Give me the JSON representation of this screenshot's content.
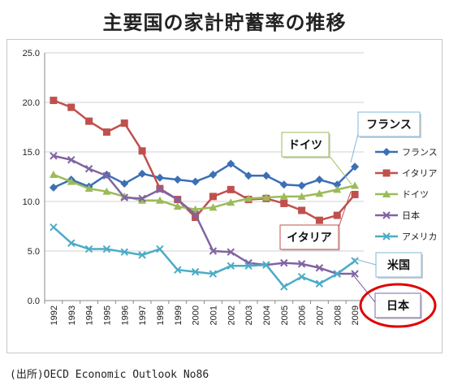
{
  "page": {
    "title": "主要国の家計貯蓄率の推移",
    "source": "(出所)OECD Economic Outlook No86"
  },
  "chart_data": {
    "type": "line",
    "categories": [
      "1992",
      "1993",
      "1994",
      "1995",
      "1996",
      "1997",
      "1998",
      "1999",
      "2000",
      "2001",
      "2002",
      "2003",
      "2004",
      "2005",
      "2006",
      "2007",
      "2008",
      "2009"
    ],
    "ylim": [
      0,
      25
    ],
    "yticks": [
      "0.0",
      "5.0",
      "10.0",
      "15.0",
      "20.0",
      "25.0"
    ],
    "grid": true,
    "legend_position": "right",
    "series": [
      {
        "name": "フランス",
        "color": "#3b6fb6",
        "marker": "diamond",
        "values": [
          11.4,
          12.2,
          11.5,
          12.7,
          11.8,
          12.8,
          12.4,
          12.2,
          12.0,
          12.7,
          13.8,
          12.6,
          12.6,
          11.7,
          11.6,
          12.2,
          11.7,
          13.5
        ]
      },
      {
        "name": "イタリア",
        "color": "#c0504d",
        "marker": "square",
        "values": [
          20.2,
          19.5,
          18.1,
          17.0,
          17.9,
          15.1,
          11.3,
          10.2,
          8.4,
          10.5,
          11.2,
          10.2,
          10.3,
          9.8,
          9.1,
          8.1,
          8.6,
          10.7
        ]
      },
      {
        "name": "ドイツ",
        "color": "#9bbb59",
        "marker": "triangle",
        "values": [
          12.7,
          12.0,
          11.3,
          11.0,
          10.5,
          10.1,
          10.1,
          9.5,
          9.2,
          9.4,
          9.9,
          10.3,
          10.4,
          10.5,
          10.5,
          10.8,
          11.2,
          11.6
        ]
      },
      {
        "name": "日本",
        "color": "#8064a2",
        "marker": "x",
        "values": [
          14.6,
          14.2,
          13.3,
          12.6,
          10.4,
          10.3,
          11.2,
          10.2,
          8.7,
          5.0,
          4.9,
          3.8,
          3.6,
          3.8,
          3.7,
          3.3,
          2.7,
          2.7
        ]
      },
      {
        "name": "アメリカ",
        "color": "#4bacc6",
        "marker": "x",
        "values": [
          7.4,
          5.8,
          5.2,
          5.2,
          4.9,
          4.6,
          5.2,
          3.1,
          2.9,
          2.7,
          3.5,
          3.5,
          3.6,
          1.4,
          2.4,
          1.7,
          2.7,
          4.0
        ]
      }
    ],
    "callouts": [
      {
        "text": "フランス",
        "series": "フランス",
        "border": "#7fb7d9"
      },
      {
        "text": "ドイツ",
        "series": "ドイツ",
        "border": "#9bbb59"
      },
      {
        "text": "イタリア",
        "series": "イタリア",
        "border": "#c0504d"
      },
      {
        "text": "米国",
        "series": "アメリカ",
        "border": "#7fb7d9"
      },
      {
        "text": "日本",
        "series": "日本",
        "border": "#8064a2",
        "highlight": "#e00000"
      }
    ]
  }
}
